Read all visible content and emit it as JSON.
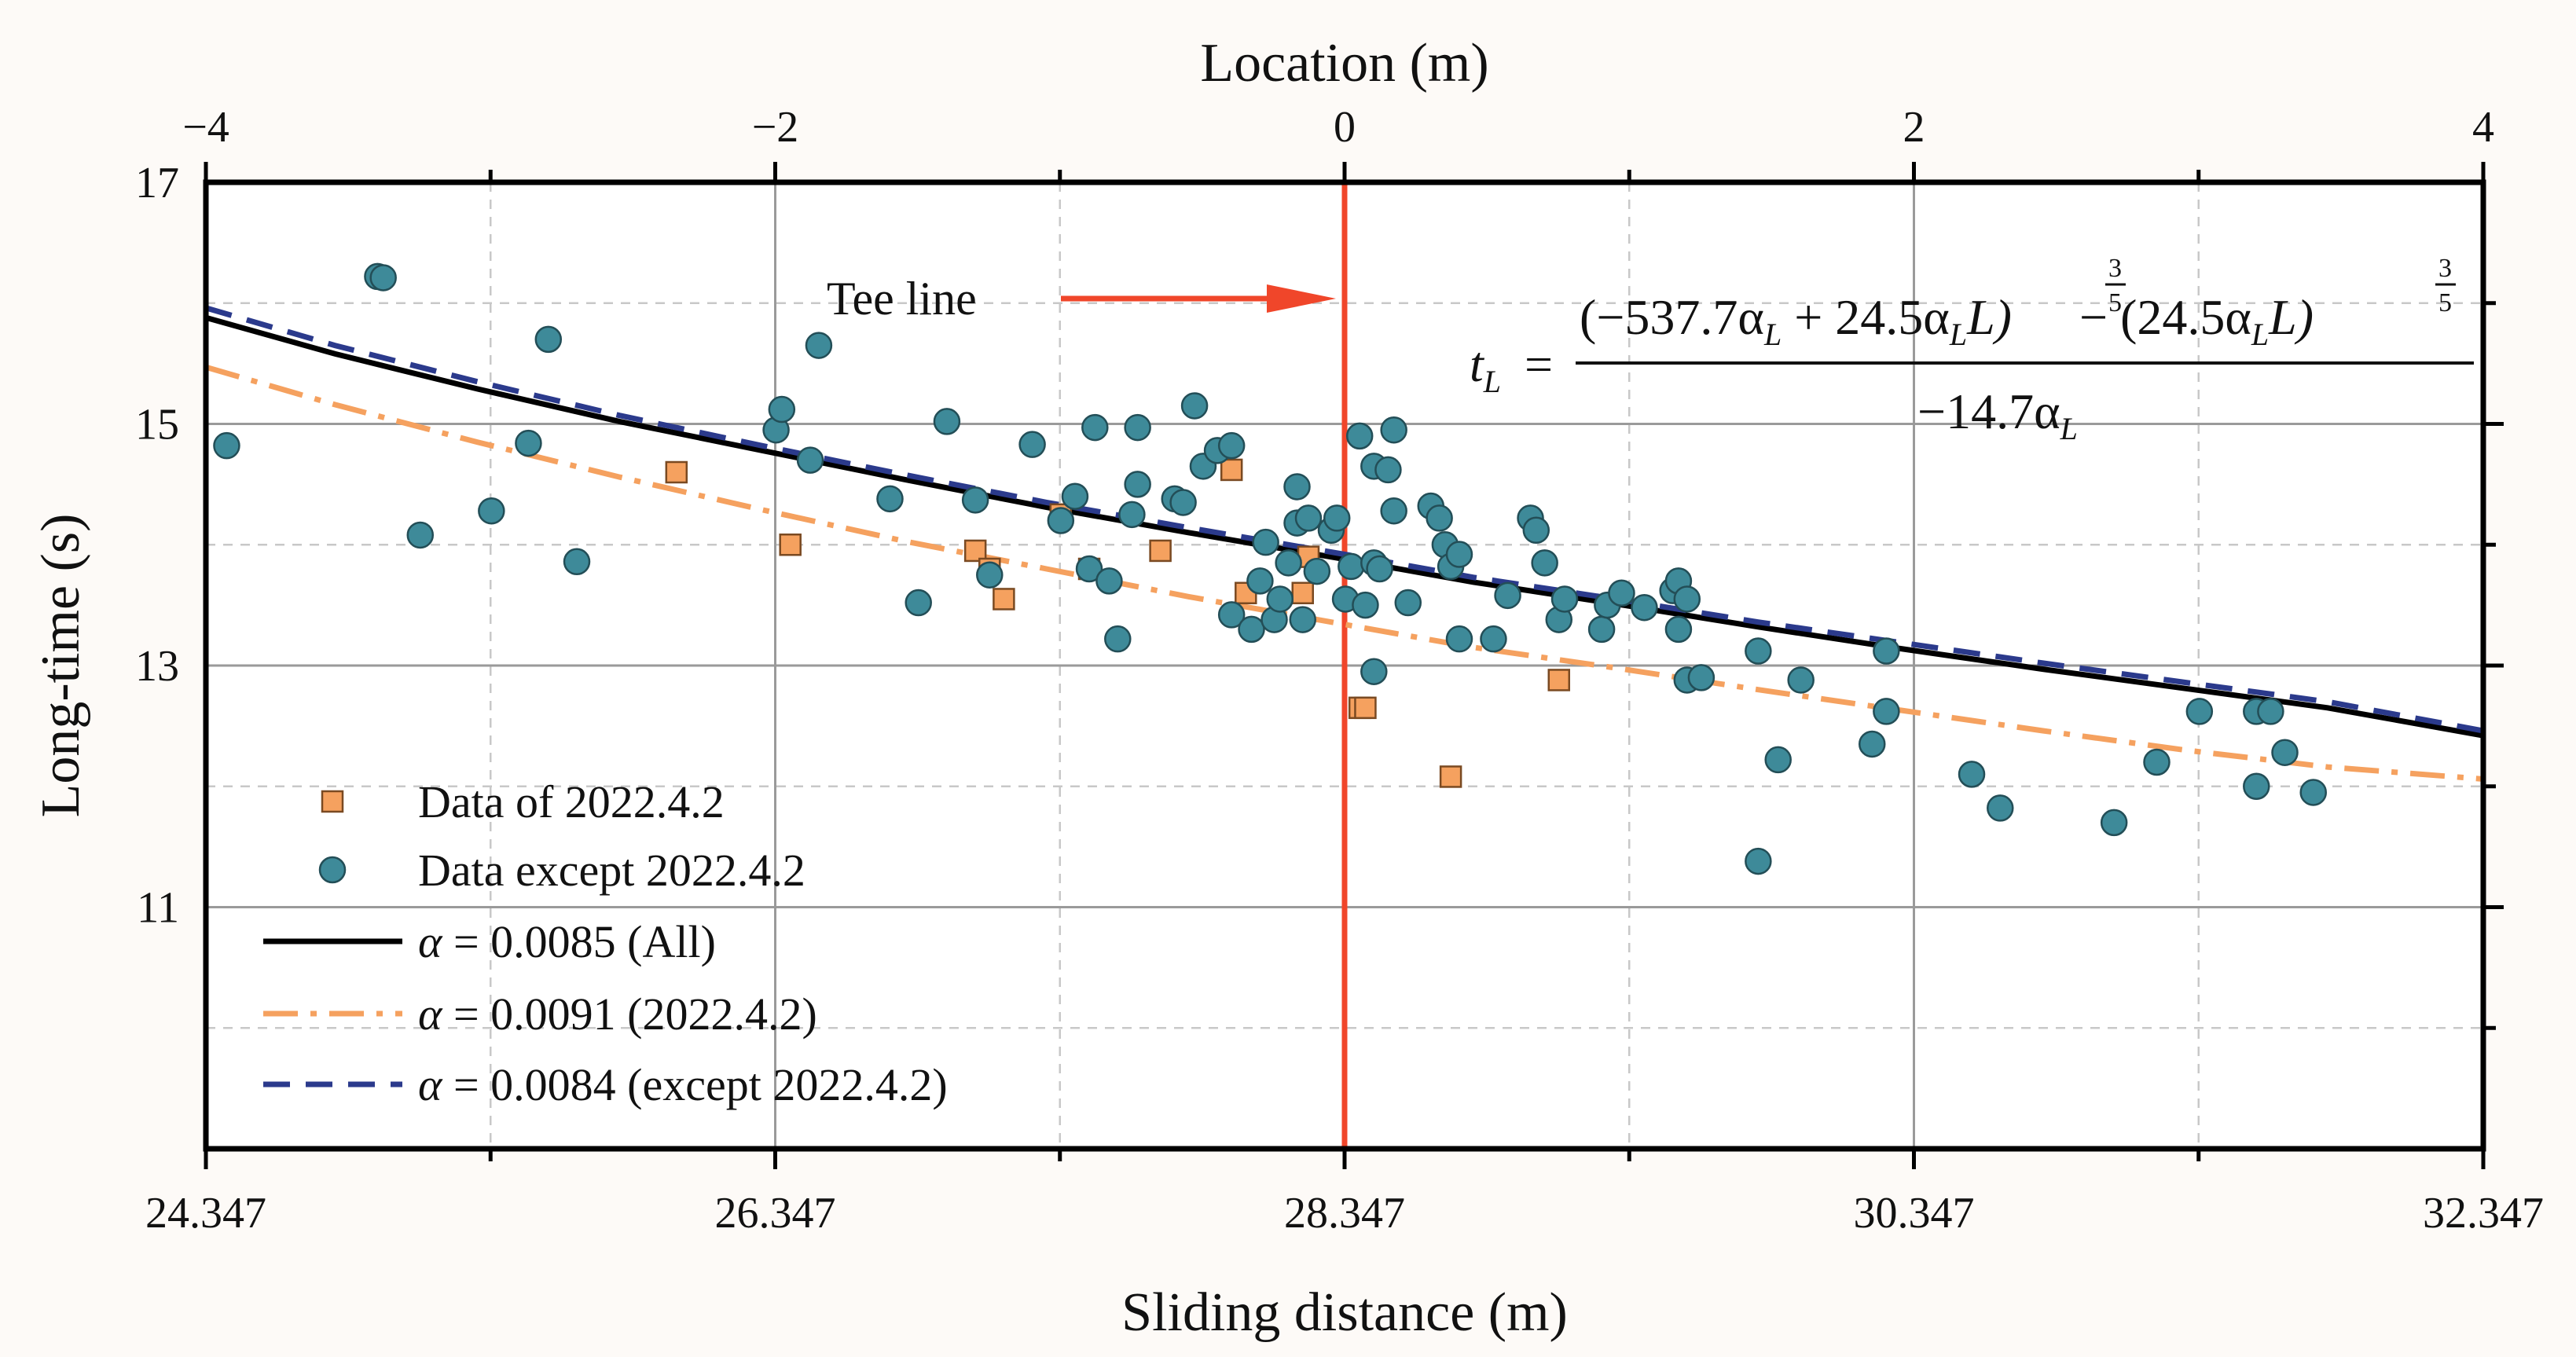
{
  "chart_data": {
    "type": "scatter",
    "title": "",
    "top_axis": {
      "label": "Location (m)",
      "range": [
        -4,
        4
      ],
      "ticks": [
        "−4",
        "−2",
        "0",
        "2",
        "4"
      ]
    },
    "xlabel": "Sliding distance (m)",
    "ylabel": "Long-time (s)",
    "xlim": [
      24.347,
      32.347
    ],
    "ylim": [
      9,
      17
    ],
    "x_ticks": [
      "24.347",
      "26.347",
      "28.347",
      "30.347",
      "32.347"
    ],
    "y_ticks": [
      "11",
      "13",
      "15",
      "17"
    ],
    "annotation": {
      "label": "Tee line",
      "x": 28.347
    },
    "formula": {
      "lhs": "t",
      "lhs_sub": "L",
      "eq": "=",
      "numerator_a": "(−537.7α",
      "numerator_a_sub": "L",
      "numerator_b": " + 24.5α",
      "numerator_b_sub": "L",
      "numerator_c": "L)",
      "numerator_d": " − (24.5α",
      "numerator_d_sub": "L",
      "numerator_e": "L)",
      "exp_num": "3",
      "exp_den": "5",
      "denominator": "−14.7α",
      "denominator_sub": "L"
    },
    "legend_position": "bottom-left",
    "legend": [
      {
        "key": "data_2022",
        "label": "Data of 2022.4.2",
        "kind": "square",
        "color": "#f5a15f",
        "stroke": "#7a4a22"
      },
      {
        "key": "data_other",
        "label": "Data except 2022.4.2",
        "kind": "circle",
        "color": "#3e8a99",
        "stroke": "#234e57"
      },
      {
        "key": "fit_all",
        "label_prefix": "α",
        "label": " = 0.0085 (All)",
        "kind": "line",
        "color": "#000000",
        "dash": "solid"
      },
      {
        "key": "fit_2022",
        "label_prefix": "α",
        "label": " = 0.0091 (2022.4.2)",
        "kind": "line",
        "color": "#f5a15f",
        "dash": "dashdot"
      },
      {
        "key": "fit_other",
        "label_prefix": "α",
        "label": " = 0.0084 (except 2022.4.2)",
        "kind": "line",
        "color": "#2b3a8c",
        "dash": "dashed"
      }
    ],
    "series": [
      {
        "name": "Data of 2022.4.2",
        "key": "data_2022",
        "kind": "scatter",
        "marker": "square",
        "points": [
          [
            26.0,
            14.6
          ],
          [
            26.4,
            14.0
          ],
          [
            27.05,
            13.95
          ],
          [
            27.1,
            13.8
          ],
          [
            27.15,
            13.55
          ],
          [
            27.35,
            14.25
          ],
          [
            27.45,
            13.8
          ],
          [
            27.7,
            13.95
          ],
          [
            27.95,
            14.62
          ],
          [
            28.0,
            13.6
          ],
          [
            28.2,
            13.6
          ],
          [
            28.22,
            13.9
          ],
          [
            28.4,
            12.65
          ],
          [
            28.42,
            12.65
          ],
          [
            28.72,
            12.08
          ],
          [
            29.1,
            12.88
          ]
        ]
      },
      {
        "name": "Data except 2022.4.2",
        "key": "data_other",
        "kind": "scatter",
        "marker": "circle",
        "points": [
          [
            24.42,
            14.82
          ],
          [
            24.95,
            16.22
          ],
          [
            24.97,
            16.21
          ],
          [
            25.1,
            14.08
          ],
          [
            25.35,
            14.28
          ],
          [
            25.48,
            14.84
          ],
          [
            25.55,
            15.7
          ],
          [
            25.65,
            13.86
          ],
          [
            26.35,
            14.95
          ],
          [
            26.37,
            15.12
          ],
          [
            26.47,
            14.7
          ],
          [
            26.5,
            15.65
          ],
          [
            26.75,
            14.38
          ],
          [
            26.85,
            13.52
          ],
          [
            26.95,
            15.02
          ],
          [
            27.05,
            14.37
          ],
          [
            27.1,
            13.75
          ],
          [
            27.25,
            14.83
          ],
          [
            27.35,
            14.2
          ],
          [
            27.4,
            14.4
          ],
          [
            27.45,
            13.8
          ],
          [
            27.47,
            14.97
          ],
          [
            27.52,
            13.7
          ],
          [
            27.55,
            13.22
          ],
          [
            27.6,
            14.25
          ],
          [
            27.62,
            14.5
          ],
          [
            27.62,
            14.97
          ],
          [
            27.75,
            14.38
          ],
          [
            27.78,
            14.35
          ],
          [
            27.82,
            15.15
          ],
          [
            27.85,
            14.65
          ],
          [
            27.9,
            14.78
          ],
          [
            27.95,
            14.82
          ],
          [
            27.95,
            13.42
          ],
          [
            28.02,
            13.3
          ],
          [
            28.05,
            13.7
          ],
          [
            28.07,
            14.02
          ],
          [
            28.1,
            13.38
          ],
          [
            28.12,
            13.55
          ],
          [
            28.15,
            13.85
          ],
          [
            28.18,
            14.18
          ],
          [
            28.18,
            14.48
          ],
          [
            28.2,
            13.38
          ],
          [
            28.22,
            14.22
          ],
          [
            28.25,
            13.78
          ],
          [
            28.3,
            14.12
          ],
          [
            28.32,
            14.22
          ],
          [
            28.35,
            13.55
          ],
          [
            28.37,
            13.82
          ],
          [
            28.4,
            14.9
          ],
          [
            28.42,
            13.5
          ],
          [
            28.45,
            14.65
          ],
          [
            28.45,
            13.85
          ],
          [
            28.45,
            12.95
          ],
          [
            28.47,
            13.8
          ],
          [
            28.5,
            14.62
          ],
          [
            28.52,
            14.28
          ],
          [
            28.52,
            14.95
          ],
          [
            28.57,
            13.52
          ],
          [
            28.65,
            14.32
          ],
          [
            28.68,
            14.22
          ],
          [
            28.7,
            14.0
          ],
          [
            28.72,
            13.82
          ],
          [
            28.75,
            13.92
          ],
          [
            28.75,
            13.22
          ],
          [
            28.87,
            13.22
          ],
          [
            28.92,
            13.58
          ],
          [
            29.0,
            14.22
          ],
          [
            29.02,
            14.12
          ],
          [
            29.05,
            13.85
          ],
          [
            29.1,
            13.38
          ],
          [
            29.12,
            13.55
          ],
          [
            29.25,
            13.3
          ],
          [
            29.27,
            13.5
          ],
          [
            29.32,
            13.6
          ],
          [
            29.4,
            13.48
          ],
          [
            29.5,
            13.62
          ],
          [
            29.52,
            13.7
          ],
          [
            29.52,
            13.3
          ],
          [
            29.55,
            13.55
          ],
          [
            29.55,
            12.88
          ],
          [
            29.6,
            12.9
          ],
          [
            29.8,
            13.12
          ],
          [
            29.8,
            11.38
          ],
          [
            29.87,
            12.22
          ],
          [
            29.95,
            12.88
          ],
          [
            30.2,
            12.35
          ],
          [
            30.25,
            13.12
          ],
          [
            30.25,
            12.62
          ],
          [
            30.55,
            12.1
          ],
          [
            30.65,
            11.82
          ],
          [
            31.05,
            11.7
          ],
          [
            31.2,
            12.2
          ],
          [
            31.35,
            12.62
          ],
          [
            31.55,
            12.0
          ],
          [
            31.55,
            12.62
          ],
          [
            31.6,
            12.62
          ],
          [
            31.65,
            12.28
          ],
          [
            31.75,
            11.95
          ]
        ]
      },
      {
        "name": "α = 0.0085 (All)",
        "key": "fit_all",
        "kind": "line",
        "dash": "solid",
        "x": [
          24.347,
          24.8,
          25.3,
          25.8,
          26.3,
          26.8,
          27.3,
          27.8,
          28.347,
          28.8,
          29.3,
          29.8,
          30.3,
          30.8,
          31.3,
          31.8,
          32.347
        ],
        "y": [
          15.88,
          15.58,
          15.29,
          15.02,
          14.78,
          14.54,
          14.31,
          14.1,
          13.88,
          13.69,
          13.51,
          13.32,
          13.14,
          12.97,
          12.81,
          12.65,
          12.42
        ]
      },
      {
        "name": "α = 0.0091 (2022.4.2)",
        "key": "fit_2022",
        "kind": "line",
        "dash": "dashdot",
        "x": [
          24.347,
          24.8,
          25.3,
          25.8,
          26.3,
          26.8,
          27.3,
          27.8,
          28.347,
          28.8,
          29.3,
          29.8,
          30.3,
          30.8,
          31.3,
          31.8,
          32.347
        ],
        "y": [
          15.47,
          15.16,
          14.85,
          14.56,
          14.29,
          14.03,
          13.8,
          13.57,
          13.34,
          13.15,
          12.98,
          12.8,
          12.63,
          12.46,
          12.3,
          12.16,
          12.06
        ]
      },
      {
        "name": "α = 0.0084 (except 2022.4.2)",
        "key": "fit_other",
        "kind": "line",
        "dash": "dashed",
        "x": [
          24.347,
          24.8,
          25.3,
          25.8,
          26.3,
          26.8,
          27.3,
          27.8,
          28.347,
          28.8,
          29.3,
          29.8,
          30.3,
          30.8,
          31.3,
          31.8,
          32.347
        ],
        "y": [
          15.96,
          15.65,
          15.35,
          15.07,
          14.82,
          14.58,
          14.35,
          14.14,
          13.92,
          13.73,
          13.55,
          13.36,
          13.19,
          13.02,
          12.86,
          12.7,
          12.46
        ]
      }
    ]
  }
}
